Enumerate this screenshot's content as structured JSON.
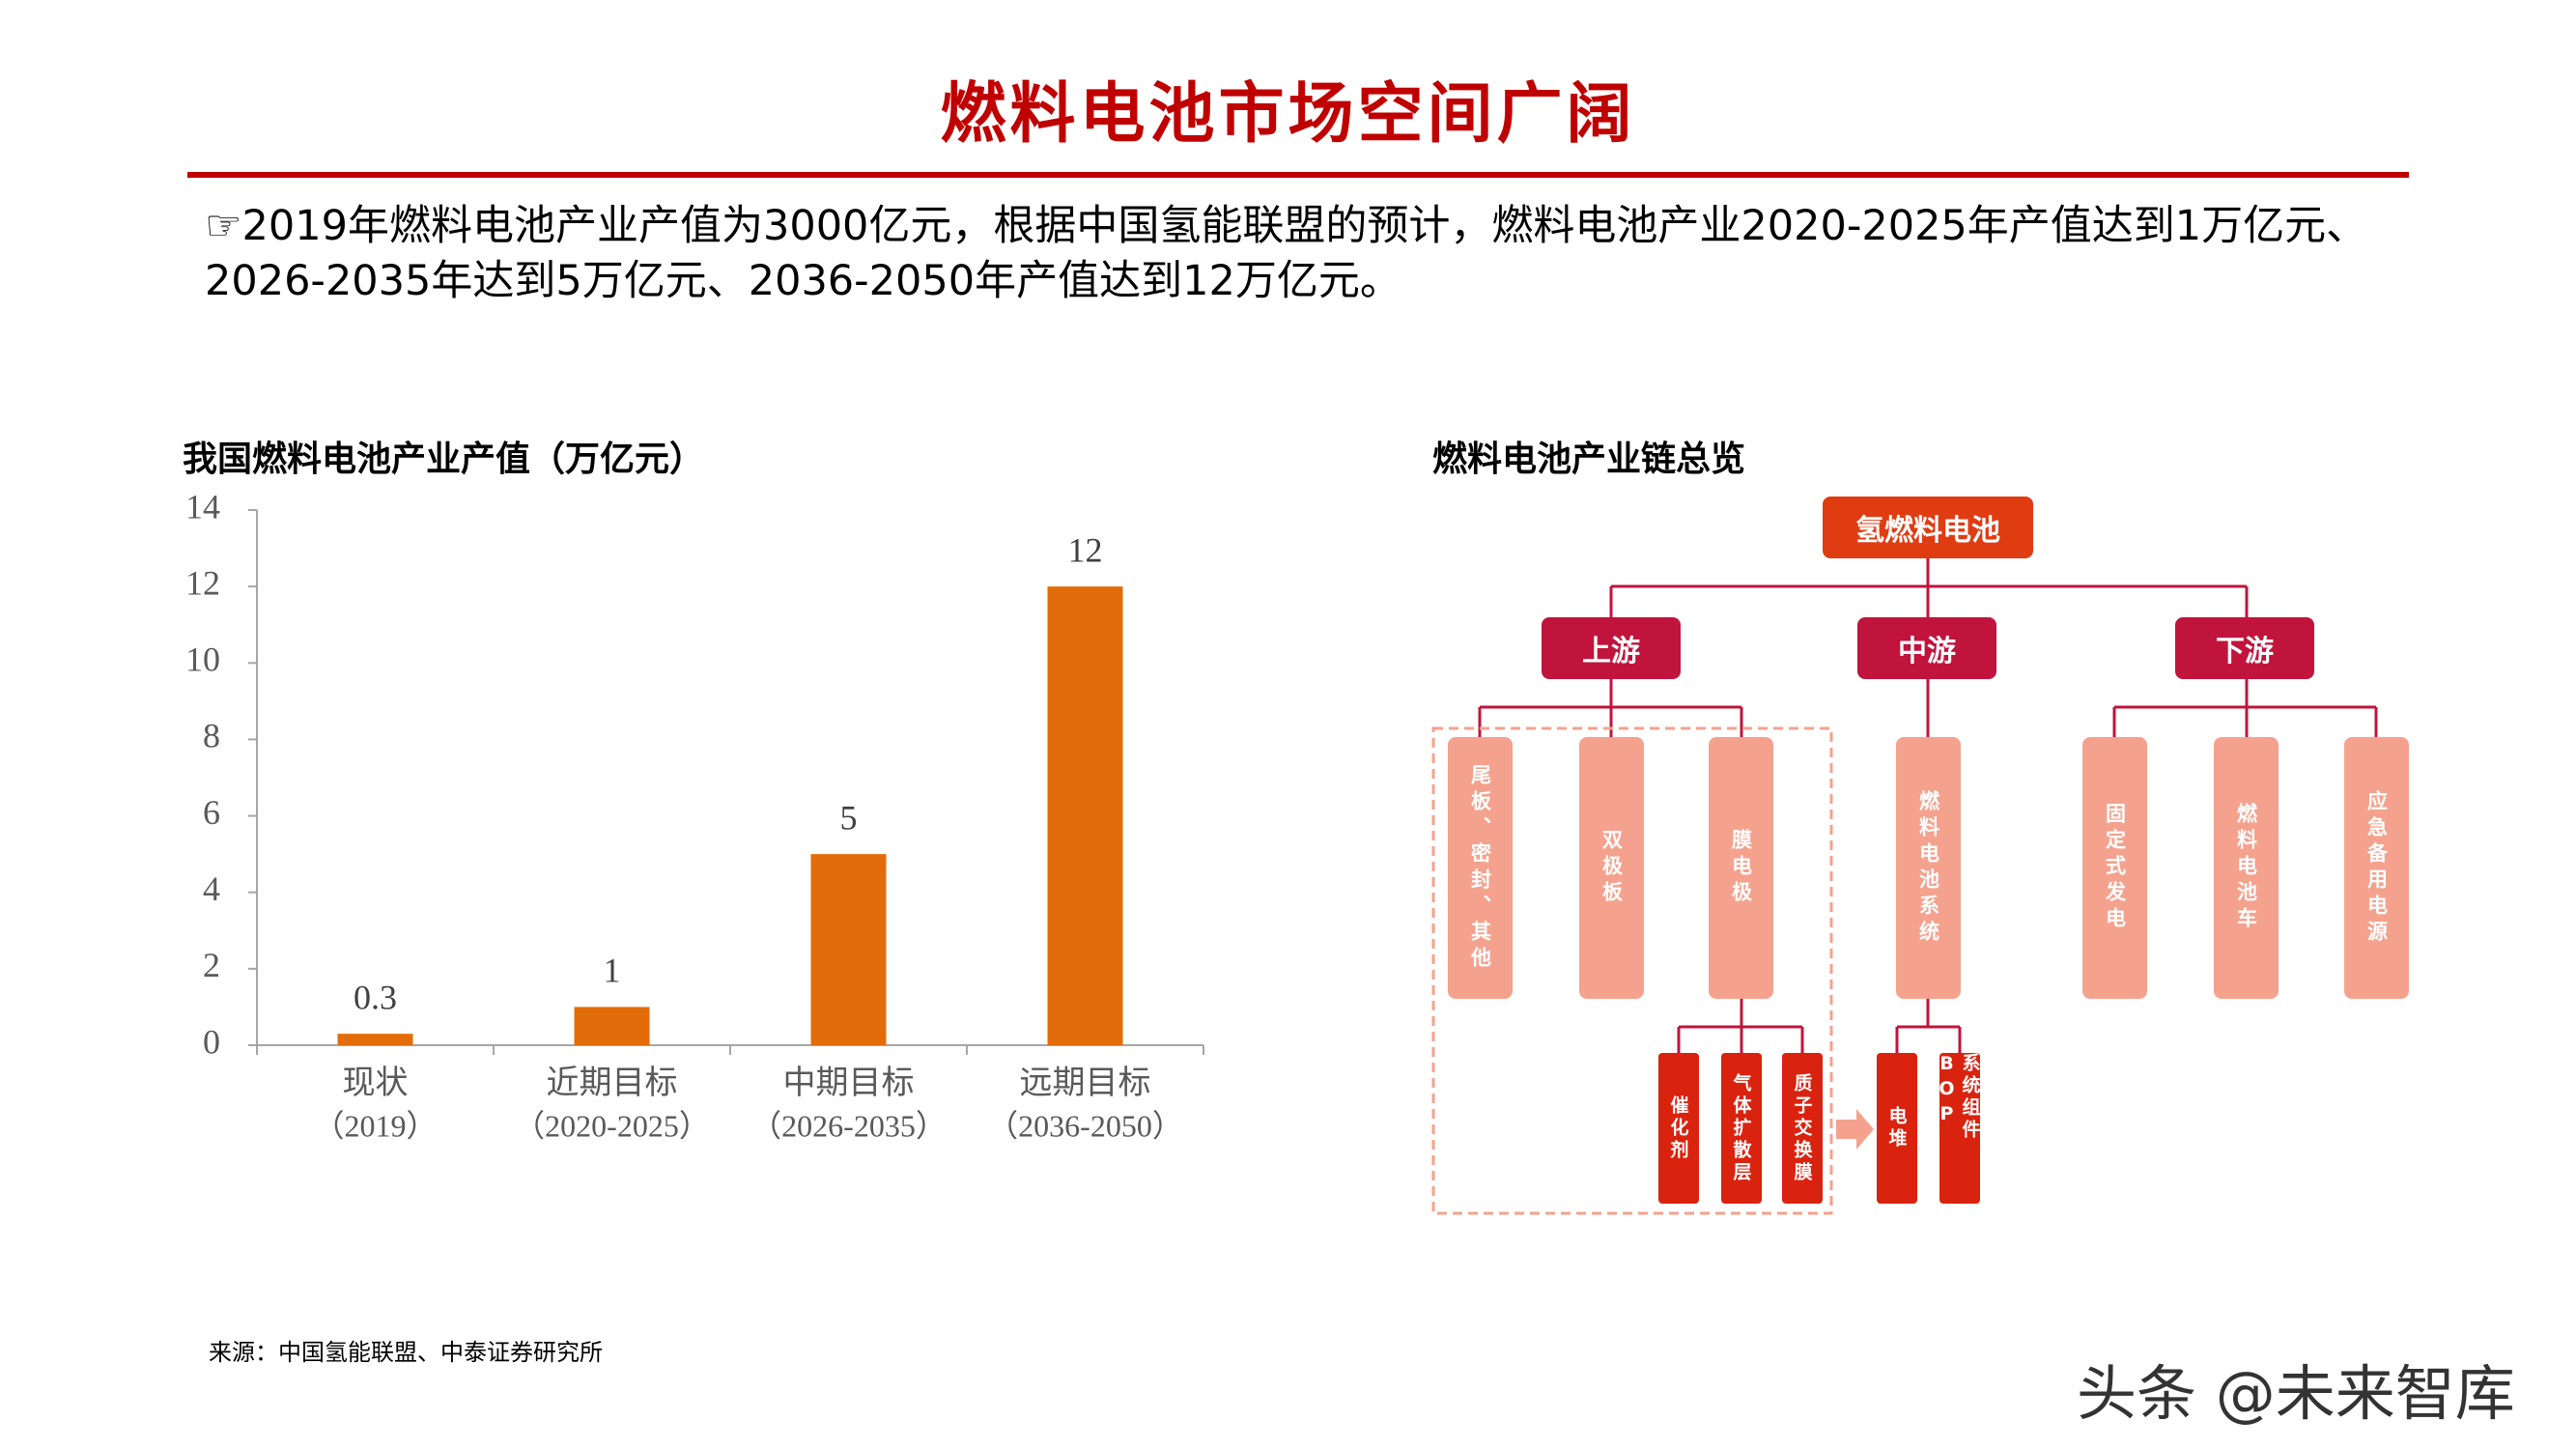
{
  "header": {
    "title": "燃料电池市场空间广阔"
  },
  "intro": "☞2019年燃料电池产业产值为3000亿元，根据中国氢能联盟的预计，燃料电池产业2020-2025年产值达到1万亿元、2026-2035年达到5万亿元、2036-2050年产值达到12万亿元。",
  "chart_data": {
    "type": "bar",
    "title": "我国燃料电池产业产值（万亿元）",
    "categories": [
      "现状",
      "近期目标",
      "中期目标",
      "远期目标"
    ],
    "category_periods": [
      "（2019）",
      "（2020-2025）",
      "（2026-2035）",
      "（2036-2050）"
    ],
    "values": [
      0.3,
      1,
      5,
      12
    ],
    "color": "#e36c0a",
    "ylim": [
      0,
      14
    ],
    "yticks": [
      0,
      2,
      4,
      6,
      8,
      10,
      12,
      14
    ],
    "grid": false
  },
  "diagram": {
    "title": "燃料电池产业链总览",
    "root": "氢燃料电池",
    "branches": [
      {
        "label": "上游",
        "items": [
          "尾板、密封、其他",
          "双极板",
          "膜电极"
        ]
      },
      {
        "label": "中游",
        "items": [
          "燃料电池系统"
        ]
      },
      {
        "label": "下游",
        "items": [
          "固定式发电",
          "燃料电池车",
          "应急备用电源"
        ]
      }
    ],
    "membrane_parts": [
      "催化剂",
      "气体扩散层",
      "质子交换膜"
    ],
    "system_parts": [
      "电堆",
      "系统组件BOP"
    ]
  },
  "source": "来源：中国氢能联盟、中泰证券研究所",
  "watermark": "头条 @未来智库"
}
